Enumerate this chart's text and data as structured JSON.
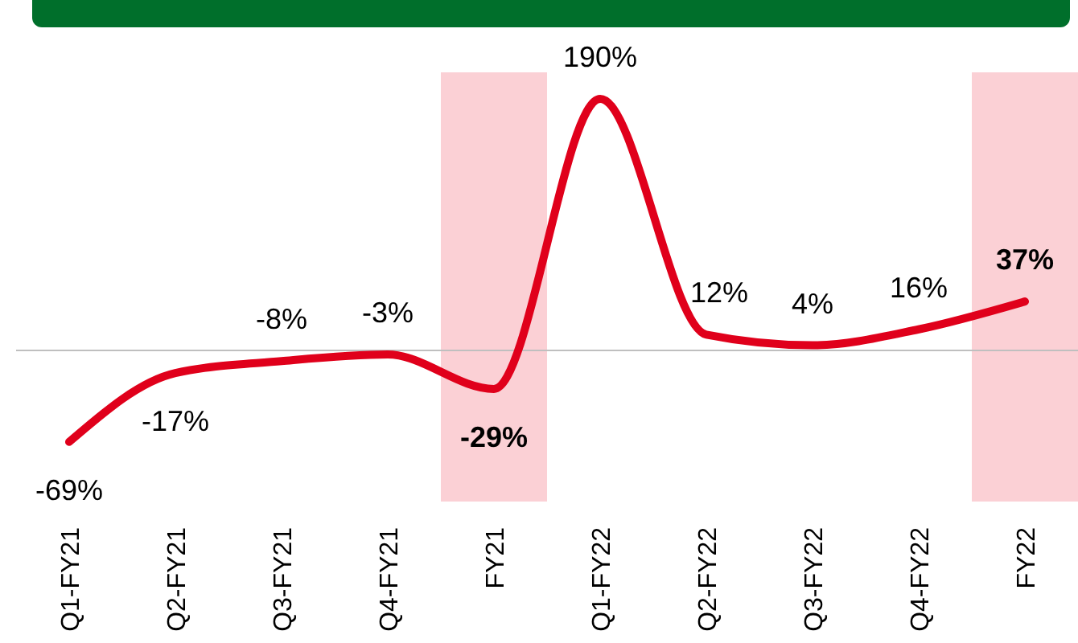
{
  "chart_data": {
    "type": "line",
    "categories": [
      "Q1-FY21",
      "Q2-FY21",
      "Q3-FY21",
      "Q4-FY21",
      "FY21",
      "Q1-FY22",
      "Q2-FY22",
      "Q3-FY22",
      "Q4-FY22",
      "FY22"
    ],
    "series": [
      {
        "color": "#e0001b",
        "values": [
          -69,
          -17,
          -8,
          -3,
          -29,
          190,
          12,
          4,
          16,
          37
        ],
        "value_labels": [
          "-69%",
          "-17%",
          "-8%",
          "-3%",
          "-29%",
          "190%",
          "12%",
          "4%",
          "16%",
          "37%"
        ]
      }
    ],
    "bands": [
      {
        "axis": "x",
        "from": "FY21",
        "to": "FY21",
        "color": "#fbd0d5"
      },
      {
        "axis": "x",
        "from": "FY22",
        "to": "FY22",
        "color": "#fbd0d5"
      }
    ],
    "marker": "none",
    "line_style": "solid",
    "grid": false,
    "legend": false
  }
}
